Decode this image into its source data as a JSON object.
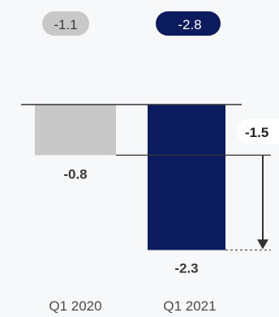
{
  "colors": {
    "background": "#f7f8f9",
    "bar_2020": "#c8c8c8",
    "bar_2021": "#0c1a5e",
    "text": "#3a3a3a",
    "text_dark": "#222222",
    "baseline": "#333333",
    "badge_2020_bg": "#c8c8c8",
    "badge_2021_bg": "#0c1a5e",
    "badge_2021_text": "#ffffff",
    "delta_badge_bg": "#ffffff"
  },
  "chart_data": {
    "type": "bar",
    "categories": [
      "Q1 2020",
      "Q1 2021"
    ],
    "values": [
      -0.8,
      -2.3
    ],
    "value_labels": [
      "-0.8",
      "-2.3"
    ],
    "badges": [
      "-1.1",
      "-2.8"
    ],
    "difference_label": "-1.5",
    "ylim": [
      -2.5,
      0
    ]
  }
}
